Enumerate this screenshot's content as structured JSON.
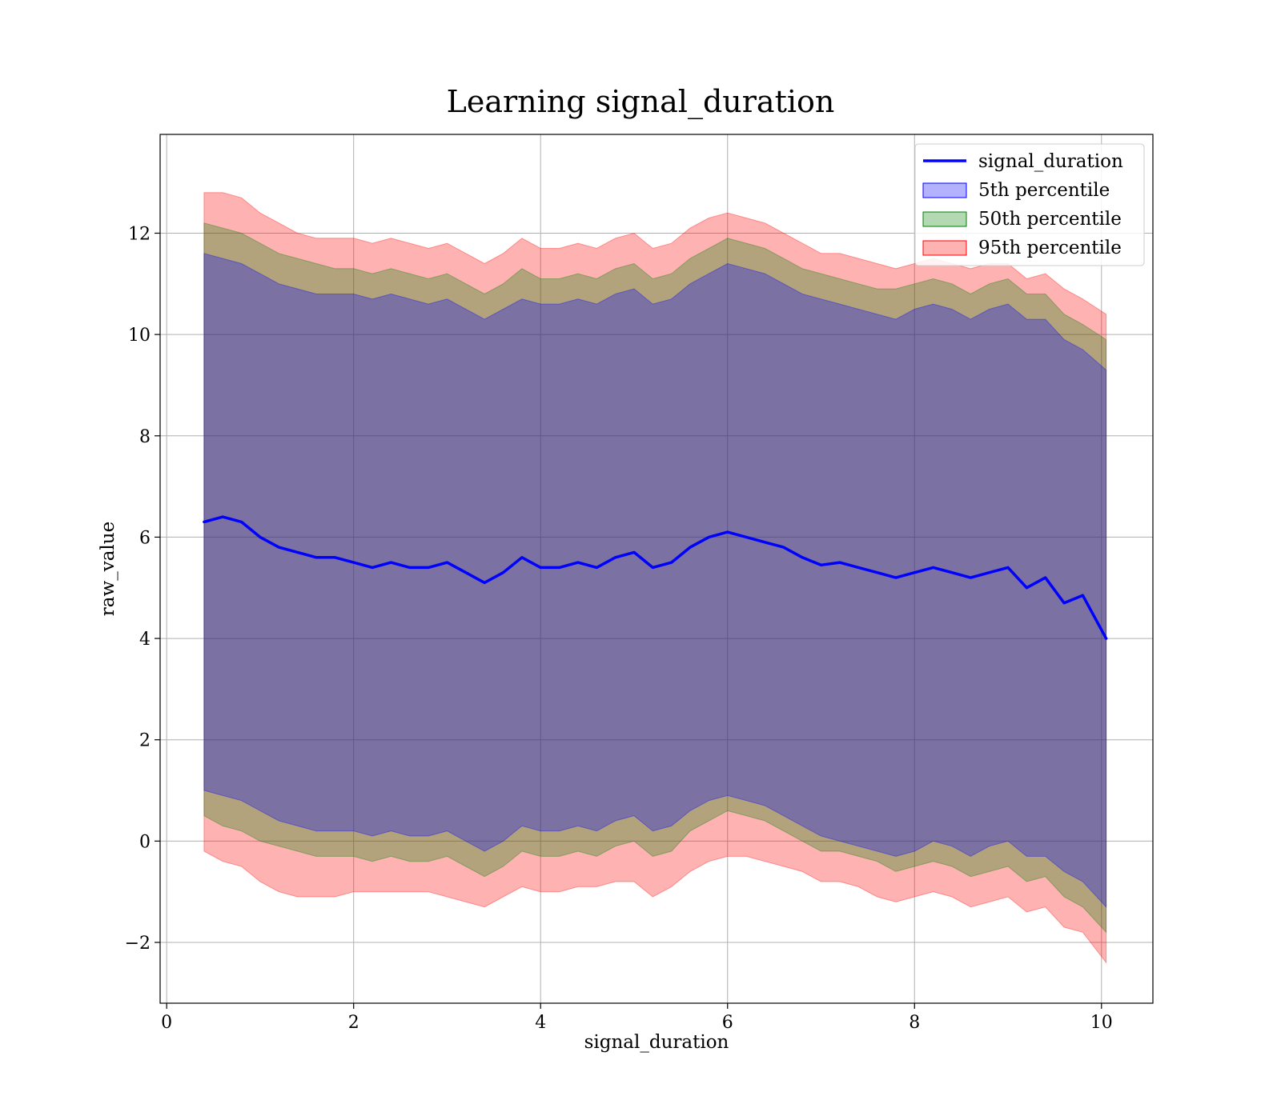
{
  "chart_data": {
    "type": "line",
    "title": "Learning signal_duration",
    "xlabel": "signal_duration",
    "ylabel": "raw_value",
    "xlim": [
      -0.07,
      10.55
    ],
    "ylim": [
      -3.2,
      13.95
    ],
    "xticks": [
      0,
      2,
      4,
      6,
      8,
      10
    ],
    "yticks": [
      -2,
      0,
      2,
      4,
      6,
      8,
      10,
      12
    ],
    "grid": true,
    "legend_position": "top-right",
    "colors": {
      "line": "#0000ff",
      "p5": "#0000ff",
      "p50": "#008000",
      "p95": "#ff0000"
    },
    "legend": [
      "signal_duration",
      "5th percentile",
      "50th percentile",
      "95th percentile"
    ],
    "x": [
      0.4,
      0.6,
      0.8,
      1.0,
      1.2,
      1.4,
      1.6,
      1.8,
      2.0,
      2.2,
      2.4,
      2.6,
      2.8,
      3.0,
      3.2,
      3.4,
      3.6,
      3.8,
      4.0,
      4.2,
      4.4,
      4.6,
      4.8,
      5.0,
      5.2,
      5.4,
      5.6,
      5.8,
      6.0,
      6.2,
      6.4,
      6.6,
      6.8,
      7.0,
      7.2,
      7.4,
      7.6,
      7.8,
      8.0,
      8.2,
      8.4,
      8.6,
      8.8,
      9.0,
      9.2,
      9.4,
      9.6,
      9.8,
      10.05
    ],
    "series": [
      {
        "name": "signal_duration",
        "values": [
          6.3,
          6.4,
          6.3,
          6.0,
          5.8,
          5.7,
          5.6,
          5.6,
          5.5,
          5.4,
          5.5,
          5.4,
          5.4,
          5.5,
          5.3,
          5.1,
          5.3,
          5.6,
          5.4,
          5.4,
          5.5,
          5.4,
          5.6,
          5.7,
          5.4,
          5.5,
          5.8,
          6.0,
          6.1,
          6.0,
          5.9,
          5.8,
          5.6,
          5.45,
          5.5,
          5.4,
          5.3,
          5.2,
          5.3,
          5.4,
          5.3,
          5.2,
          5.3,
          5.4,
          5.0,
          5.2,
          4.7,
          4.85,
          4.0
        ]
      },
      {
        "name": "95th percentile",
        "upper": [
          12.8,
          12.8,
          12.7,
          12.4,
          12.2,
          12.0,
          11.9,
          11.9,
          11.9,
          11.8,
          11.9,
          11.8,
          11.7,
          11.8,
          11.6,
          11.4,
          11.6,
          11.9,
          11.7,
          11.7,
          11.8,
          11.7,
          11.9,
          12.0,
          11.7,
          11.8,
          12.1,
          12.3,
          12.4,
          12.3,
          12.2,
          12.0,
          11.8,
          11.6,
          11.6,
          11.5,
          11.4,
          11.3,
          11.4,
          11.5,
          11.4,
          11.3,
          11.4,
          11.4,
          11.1,
          11.2,
          10.9,
          10.7,
          10.4
        ],
        "lower": [
          -0.2,
          -0.4,
          -0.5,
          -0.8,
          -1.0,
          -1.1,
          -1.1,
          -1.1,
          -1.0,
          -1.0,
          -1.0,
          -1.0,
          -1.0,
          -1.1,
          -1.2,
          -1.3,
          -1.1,
          -0.9,
          -1.0,
          -1.0,
          -0.9,
          -0.9,
          -0.8,
          -0.8,
          -1.1,
          -0.9,
          -0.6,
          -0.4,
          -0.3,
          -0.3,
          -0.4,
          -0.5,
          -0.6,
          -0.8,
          -0.8,
          -0.9,
          -1.1,
          -1.2,
          -1.1,
          -1.0,
          -1.1,
          -1.3,
          -1.2,
          -1.1,
          -1.4,
          -1.3,
          -1.7,
          -1.8,
          -2.4
        ]
      },
      {
        "name": "50th percentile",
        "upper": [
          12.2,
          12.1,
          12.0,
          11.8,
          11.6,
          11.5,
          11.4,
          11.3,
          11.3,
          11.2,
          11.3,
          11.2,
          11.1,
          11.2,
          11.0,
          10.8,
          11.0,
          11.3,
          11.1,
          11.1,
          11.2,
          11.1,
          11.3,
          11.4,
          11.1,
          11.2,
          11.5,
          11.7,
          11.9,
          11.8,
          11.7,
          11.5,
          11.3,
          11.2,
          11.1,
          11.0,
          10.9,
          10.9,
          11.0,
          11.1,
          11.0,
          10.8,
          11.0,
          11.1,
          10.8,
          10.8,
          10.4,
          10.2,
          9.9
        ],
        "lower": [
          0.5,
          0.3,
          0.2,
          0.0,
          -0.1,
          -0.2,
          -0.3,
          -0.3,
          -0.3,
          -0.4,
          -0.3,
          -0.4,
          -0.4,
          -0.3,
          -0.5,
          -0.7,
          -0.5,
          -0.2,
          -0.3,
          -0.3,
          -0.2,
          -0.3,
          -0.1,
          0.0,
          -0.3,
          -0.2,
          0.2,
          0.4,
          0.6,
          0.5,
          0.4,
          0.2,
          0.0,
          -0.2,
          -0.2,
          -0.3,
          -0.4,
          -0.6,
          -0.5,
          -0.4,
          -0.5,
          -0.7,
          -0.6,
          -0.5,
          -0.8,
          -0.7,
          -1.1,
          -1.3,
          -1.8
        ]
      },
      {
        "name": "5th percentile",
        "upper": [
          11.6,
          11.5,
          11.4,
          11.2,
          11.0,
          10.9,
          10.8,
          10.8,
          10.8,
          10.7,
          10.8,
          10.7,
          10.6,
          10.7,
          10.5,
          10.3,
          10.5,
          10.7,
          10.6,
          10.6,
          10.7,
          10.6,
          10.8,
          10.9,
          10.6,
          10.7,
          11.0,
          11.2,
          11.4,
          11.3,
          11.2,
          11.0,
          10.8,
          10.7,
          10.6,
          10.5,
          10.4,
          10.3,
          10.5,
          10.6,
          10.5,
          10.3,
          10.5,
          10.6,
          10.3,
          10.3,
          9.9,
          9.7,
          9.3
        ],
        "lower": [
          1.0,
          0.9,
          0.8,
          0.6,
          0.4,
          0.3,
          0.2,
          0.2,
          0.2,
          0.1,
          0.2,
          0.1,
          0.1,
          0.2,
          0.0,
          -0.2,
          0.0,
          0.3,
          0.2,
          0.2,
          0.3,
          0.2,
          0.4,
          0.5,
          0.2,
          0.3,
          0.6,
          0.8,
          0.9,
          0.8,
          0.7,
          0.5,
          0.3,
          0.1,
          0.0,
          -0.1,
          -0.2,
          -0.3,
          -0.2,
          0.0,
          -0.1,
          -0.3,
          -0.1,
          0.0,
          -0.3,
          -0.3,
          -0.6,
          -0.8,
          -1.3
        ]
      }
    ]
  }
}
